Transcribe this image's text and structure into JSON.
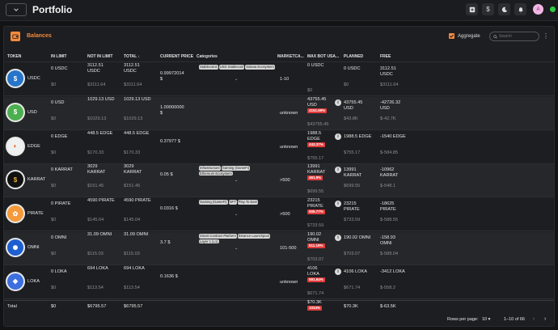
{
  "app": {
    "title": "Portfolio"
  },
  "colors": {
    "accent": "#f58a3c",
    "negative_badge": "#e23b3b",
    "status_dot": "#2ecc40"
  },
  "topbar": {
    "icons": [
      "add-box-icon",
      "dollar-icon",
      "moon-icon",
      "bell-icon"
    ],
    "avatar_letter": "A"
  },
  "panel": {
    "title": "Balances",
    "aggregate_label": "Aggregate",
    "aggregate_checked": true,
    "search_placeholder": "Search"
  },
  "columns": {
    "token": "TOKEN",
    "in_limit": "IN LIMIT",
    "not_in_limit": "NOT IN LIMIT",
    "total": "TOTAL",
    "current_price": "CURRENT PRICE",
    "categories": "Categories",
    "marketcap": "MARKETCA...",
    "max_bot_usage": "MAX BOT USA...",
    "planned": "PLANNED",
    "free": "FREE"
  },
  "rows": [
    {
      "symbol": "USDC",
      "icon": "usdc-icon",
      "in_limit": "0 USDC",
      "in_limit_usd": "$0",
      "not_in_limit_1": "3112.51",
      "not_in_limit_2": "USDC",
      "not_in_limit_usd": "$3111.64",
      "total_1": "3112.51",
      "total_2": "USDC",
      "total_usd": "$3111.64",
      "price_1": "0.99972014",
      "price_2": "$",
      "tags": [
        "Stablecoins",
        "USD Stablecoin",
        "Solana Ecosystem"
      ],
      "marketcap": "1-10",
      "max_1": "0 USDC",
      "max_2": "",
      "max_badge": "",
      "max_usd": "$0",
      "planned_1": "0 USDC",
      "planned_2": "",
      "planned_usd": "$0",
      "free_1": "3112.51",
      "free_2": "USDC",
      "free_usd": "$3111.64"
    },
    {
      "symbol": "USD",
      "icon": "usd-icon",
      "in_limit": "0 USD",
      "in_limit_usd": "$0",
      "not_in_limit_1": "1029.13 USD",
      "not_in_limit_2": "",
      "not_in_limit_usd": "$1029.13",
      "total_1": "1029.13 USD",
      "total_2": "",
      "total_usd": "$1029.13",
      "price_1": "1.00000000",
      "price_2": "$",
      "tags": [],
      "marketcap": "unknown",
      "max_1": "43755.45",
      "max_2": "USD",
      "max_badge": "4151.69%",
      "max_usd": "$43755.45",
      "planned_1": "43755.45",
      "planned_2": "USD",
      "planned_usd": "$43.8K",
      "free_1": "-42726.32",
      "free_2": "USD",
      "free_usd": "$-42.7K"
    },
    {
      "symbol": "EDGE",
      "icon": "edge-icon",
      "in_limit": "0 EDGE",
      "in_limit_usd": "$0",
      "not_in_limit_1": "448.5 EDGE",
      "not_in_limit_2": "",
      "not_in_limit_usd": "$170.33",
      "total_1": "448.5 EDGE",
      "total_2": "",
      "total_usd": "$170.33",
      "price_1": "0.37977 $",
      "price_2": "",
      "tags": [],
      "marketcap": "unknown",
      "max_1": "1988.5",
      "max_2": "EDGE",
      "max_badge": "443.37%",
      "max_usd": "$755.17",
      "planned_1": "1988.5 EDGE",
      "planned_2": "",
      "planned_usd": "$755.17",
      "free_1": "-1540 EDGE",
      "free_2": "",
      "free_usd": "$-584.85"
    },
    {
      "symbol": "KARRAT",
      "icon": "karrat-icon",
      "in_limit": "0 KARRAT",
      "in_limit_usd": "$0",
      "not_in_limit_1": "3029",
      "not_in_limit_2": "KARRAT",
      "not_in_limit_usd": "$151.45",
      "total_1": "3029",
      "total_2": "KARRAT",
      "total_usd": "$151.45",
      "price_1": "0.05 $",
      "price_2": "",
      "tags": [
        "Infrastructure",
        "Gaming (GameFi)",
        "Ethereum Ecosystem"
      ],
      "marketcap": ">500",
      "max_1": "13991",
      "max_2": "KARRAT",
      "max_badge": "461.9%",
      "max_usd": "$699.55",
      "planned_1": "13991",
      "planned_2": "KARRAT",
      "planned_usd": "$699.55",
      "free_1": "-10962",
      "free_2": "KARRAT",
      "free_usd": "$-548.1"
    },
    {
      "symbol": "PIRATE",
      "icon": "pirate-icon",
      "in_limit": "0 PIRATE",
      "in_limit_usd": "$0",
      "not_in_limit_1": "4590 PIRATE",
      "not_in_limit_2": "",
      "not_in_limit_usd": "$145.04",
      "total_1": "4590 PIRATE",
      "total_2": "",
      "total_usd": "$145.04",
      "price_1": "0.0316 $",
      "price_2": "",
      "tags": [
        "Gaming (GameFi)",
        "NFT",
        "Play To Earn"
      ],
      "marketcap": ">500",
      "max_1": "23215",
      "max_2": "PIRATE",
      "max_badge": "505.77%",
      "max_usd": "$733.59",
      "planned_1": "23215",
      "planned_2": "PIRATE",
      "planned_usd": "$733.59",
      "free_1": "-18625",
      "free_2": "PIRATE",
      "free_usd": "$-588.55"
    },
    {
      "symbol": "OMNI",
      "icon": "omni-icon",
      "in_limit": "0 OMNI",
      "in_limit_usd": "$0",
      "not_in_limit_1": "31.09 OMNI",
      "not_in_limit_2": "",
      "not_in_limit_usd": "$115.03",
      "total_1": "31.09 OMNI",
      "total_2": "",
      "total_usd": "$115.03",
      "price_1": "3.7 $",
      "price_2": "",
      "tags": [
        "Smart Contract Platform",
        "Binance Launchpool",
        "Layer 1 (L1)"
      ],
      "marketcap": "101-500",
      "max_1": "190.02",
      "max_2": "OMNI",
      "max_badge": "611.19%",
      "max_usd": "$703.07",
      "planned_1": "190.02 OMNI",
      "planned_2": "",
      "planned_usd": "$703.07",
      "free_1": "-158.93",
      "free_2": "OMNI",
      "free_usd": "$-588.04"
    },
    {
      "symbol": "LOKA",
      "icon": "loka-icon",
      "in_limit": "0 LOKA",
      "in_limit_usd": "$0",
      "not_in_limit_1": "694 LOKA",
      "not_in_limit_2": "",
      "not_in_limit_usd": "$113.54",
      "total_1": "694 LOKA",
      "total_2": "",
      "total_usd": "$113.54",
      "price_1": "0.1636 $",
      "price_2": "",
      "tags": [],
      "marketcap": "unknown",
      "max_1": "4106",
      "max_2": "LOKA",
      "max_badge": "591.64%",
      "max_usd": "$671.74",
      "planned_1": "4106 LOKA",
      "planned_2": "",
      "planned_usd": "$671.74",
      "free_1": "-3412 LOKA",
      "free_2": "",
      "free_usd": "$-558.2"
    }
  ],
  "total_row": {
    "label": "Total",
    "in_limit": "$0",
    "not_in_limit": "$6795.57",
    "total": "$6795.57",
    "max_top": "$70.3K",
    "max_badge": "1034%",
    "planned": "$70.3K",
    "free": "$-63.5K"
  },
  "pagination": {
    "rows_per_page_label": "Rows per page:",
    "rows_per_page": "10",
    "range": "1–10 of 66"
  }
}
